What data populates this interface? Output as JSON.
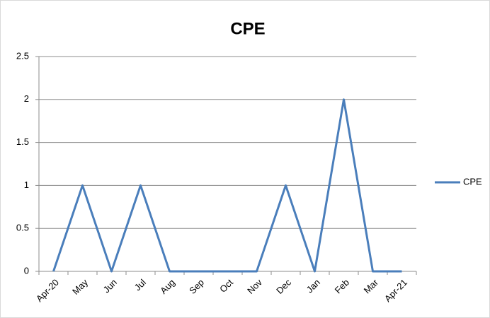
{
  "chart_data": {
    "type": "line",
    "title": "CPE",
    "categories": [
      "Apr-20",
      "May",
      "Jun",
      "Jul",
      "Aug",
      "Sep",
      "Oct",
      "Nov",
      "Dec",
      "Jan",
      "Feb",
      "Mar",
      "Apr-21"
    ],
    "series": [
      {
        "name": "CPE",
        "color": "#4a7ebb",
        "values": [
          0,
          1,
          0,
          1,
          0,
          0,
          0,
          0,
          1,
          0,
          2,
          0,
          0
        ]
      }
    ],
    "ylim": [
      0,
      2.5
    ],
    "yticks": [
      0,
      0.5,
      1,
      1.5,
      2,
      2.5
    ],
    "grid": true,
    "legend": "right"
  }
}
